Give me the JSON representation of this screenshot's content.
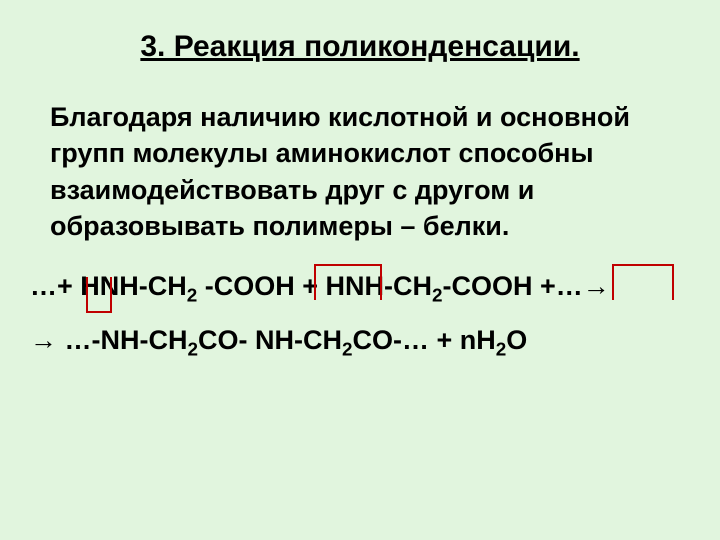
{
  "title": "3. Реакция поликонденсации.",
  "body_text": "Благодаря наличию кислотной и основной групп молекулы аминокислот способны взаимодействовать друг с другом и образовывать полимеры – белки.",
  "formula": {
    "line1": {
      "prefix": "…+ ",
      "part1": "HNH-CH",
      "sub1": "2",
      "part2": " -COOH + HNH-CH",
      "sub2": "2",
      "part3": "-COOH +…→"
    },
    "line2": {
      "prefix": "→ …-NH-CH",
      "sub1": "2",
      "part2": "CO- NH-CH",
      "sub2": "2",
      "part3": "CO-… + nH",
      "sub3": "2",
      "part4": "O"
    }
  },
  "boxes": {
    "box1_color": "#c00000",
    "box2_color": "#c00000",
    "box3_color": "#c00000"
  }
}
